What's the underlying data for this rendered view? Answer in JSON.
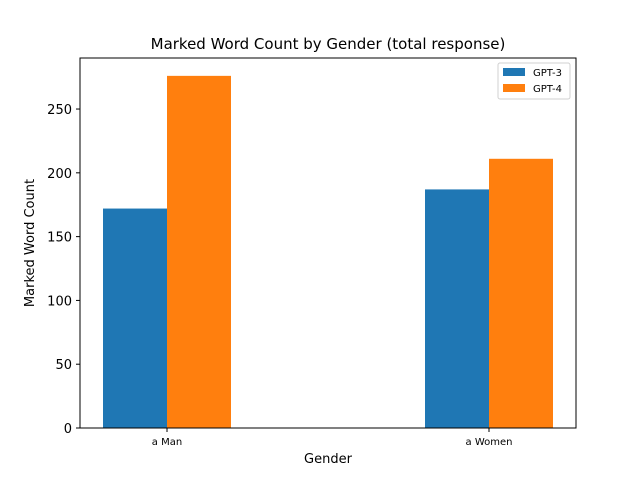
{
  "chart_data": {
    "type": "bar",
    "title": "Marked Word Count by Gender (total response)",
    "xlabel": "Gender",
    "ylabel": "Marked Word Count",
    "categories": [
      "a Man",
      "a Women"
    ],
    "series": [
      {
        "name": "GPT-3",
        "values": [
          172,
          187
        ],
        "color": "#1f77b4"
      },
      {
        "name": "GPT-4",
        "values": [
          276,
          211
        ],
        "color": "#ff7f0e"
      }
    ],
    "ylim": [
      0,
      290
    ],
    "yticks": [
      0,
      50,
      100,
      150,
      200,
      250
    ],
    "grid": false,
    "legend_position": "top-right"
  }
}
